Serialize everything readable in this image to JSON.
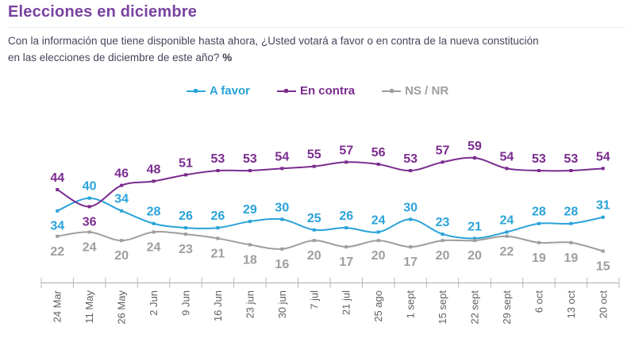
{
  "header": {
    "title": "Elecciones en diciembre",
    "title_color": "#7942a0",
    "subtitle_line1": "Con la información que tiene disponible hasta ahora, ¿Usted votará a favor o en contra de la nueva constitución",
    "subtitle_line2": "en las elecciones de diciembre de este año?",
    "subtitle_bold_suffix": "%"
  },
  "chart_data": {
    "type": "line",
    "title": "Elecciones en diciembre",
    "categories": [
      "24 Mar",
      "11 May",
      "26 May",
      "2 Jun",
      "9 Jun",
      "16 Jun",
      "23 jun",
      "30 jun",
      "7 jul",
      "21 jul",
      "25 ago",
      "1 sept",
      "15 sept",
      "22 sept",
      "29 sept",
      "6 oct",
      "13 oct",
      "20 oct"
    ],
    "series": [
      {
        "name": "A favor",
        "color": "#2aa3da",
        "values": [
          34,
          40,
          34,
          28,
          26,
          26,
          29,
          30,
          25,
          26,
          24,
          30,
          23,
          21,
          24,
          28,
          28,
          31
        ],
        "labels_position": "above",
        "labels_flipped_at": [
          0
        ]
      },
      {
        "name": "En contra",
        "color": "#7b2c8f",
        "values": [
          44,
          36,
          46,
          48,
          51,
          53,
          53,
          54,
          55,
          57,
          56,
          53,
          57,
          59,
          54,
          53,
          53,
          54
        ],
        "labels_position": "above",
        "labels_flipped_at": [
          1
        ]
      },
      {
        "name": "NS / NR",
        "color": "#9e9e9e",
        "values": [
          22,
          24,
          20,
          24,
          23,
          21,
          18,
          16,
          20,
          17,
          20,
          17,
          20,
          20,
          22,
          19,
          19,
          15
        ],
        "labels_position": "below",
        "labels_flipped_at": []
      }
    ],
    "xlabel": "",
    "ylabel": "",
    "ylim": [
      0,
      65
    ],
    "grid": false,
    "legend_position": "top-center",
    "smooth_lines": true,
    "marker": "square",
    "data_labels": true
  }
}
